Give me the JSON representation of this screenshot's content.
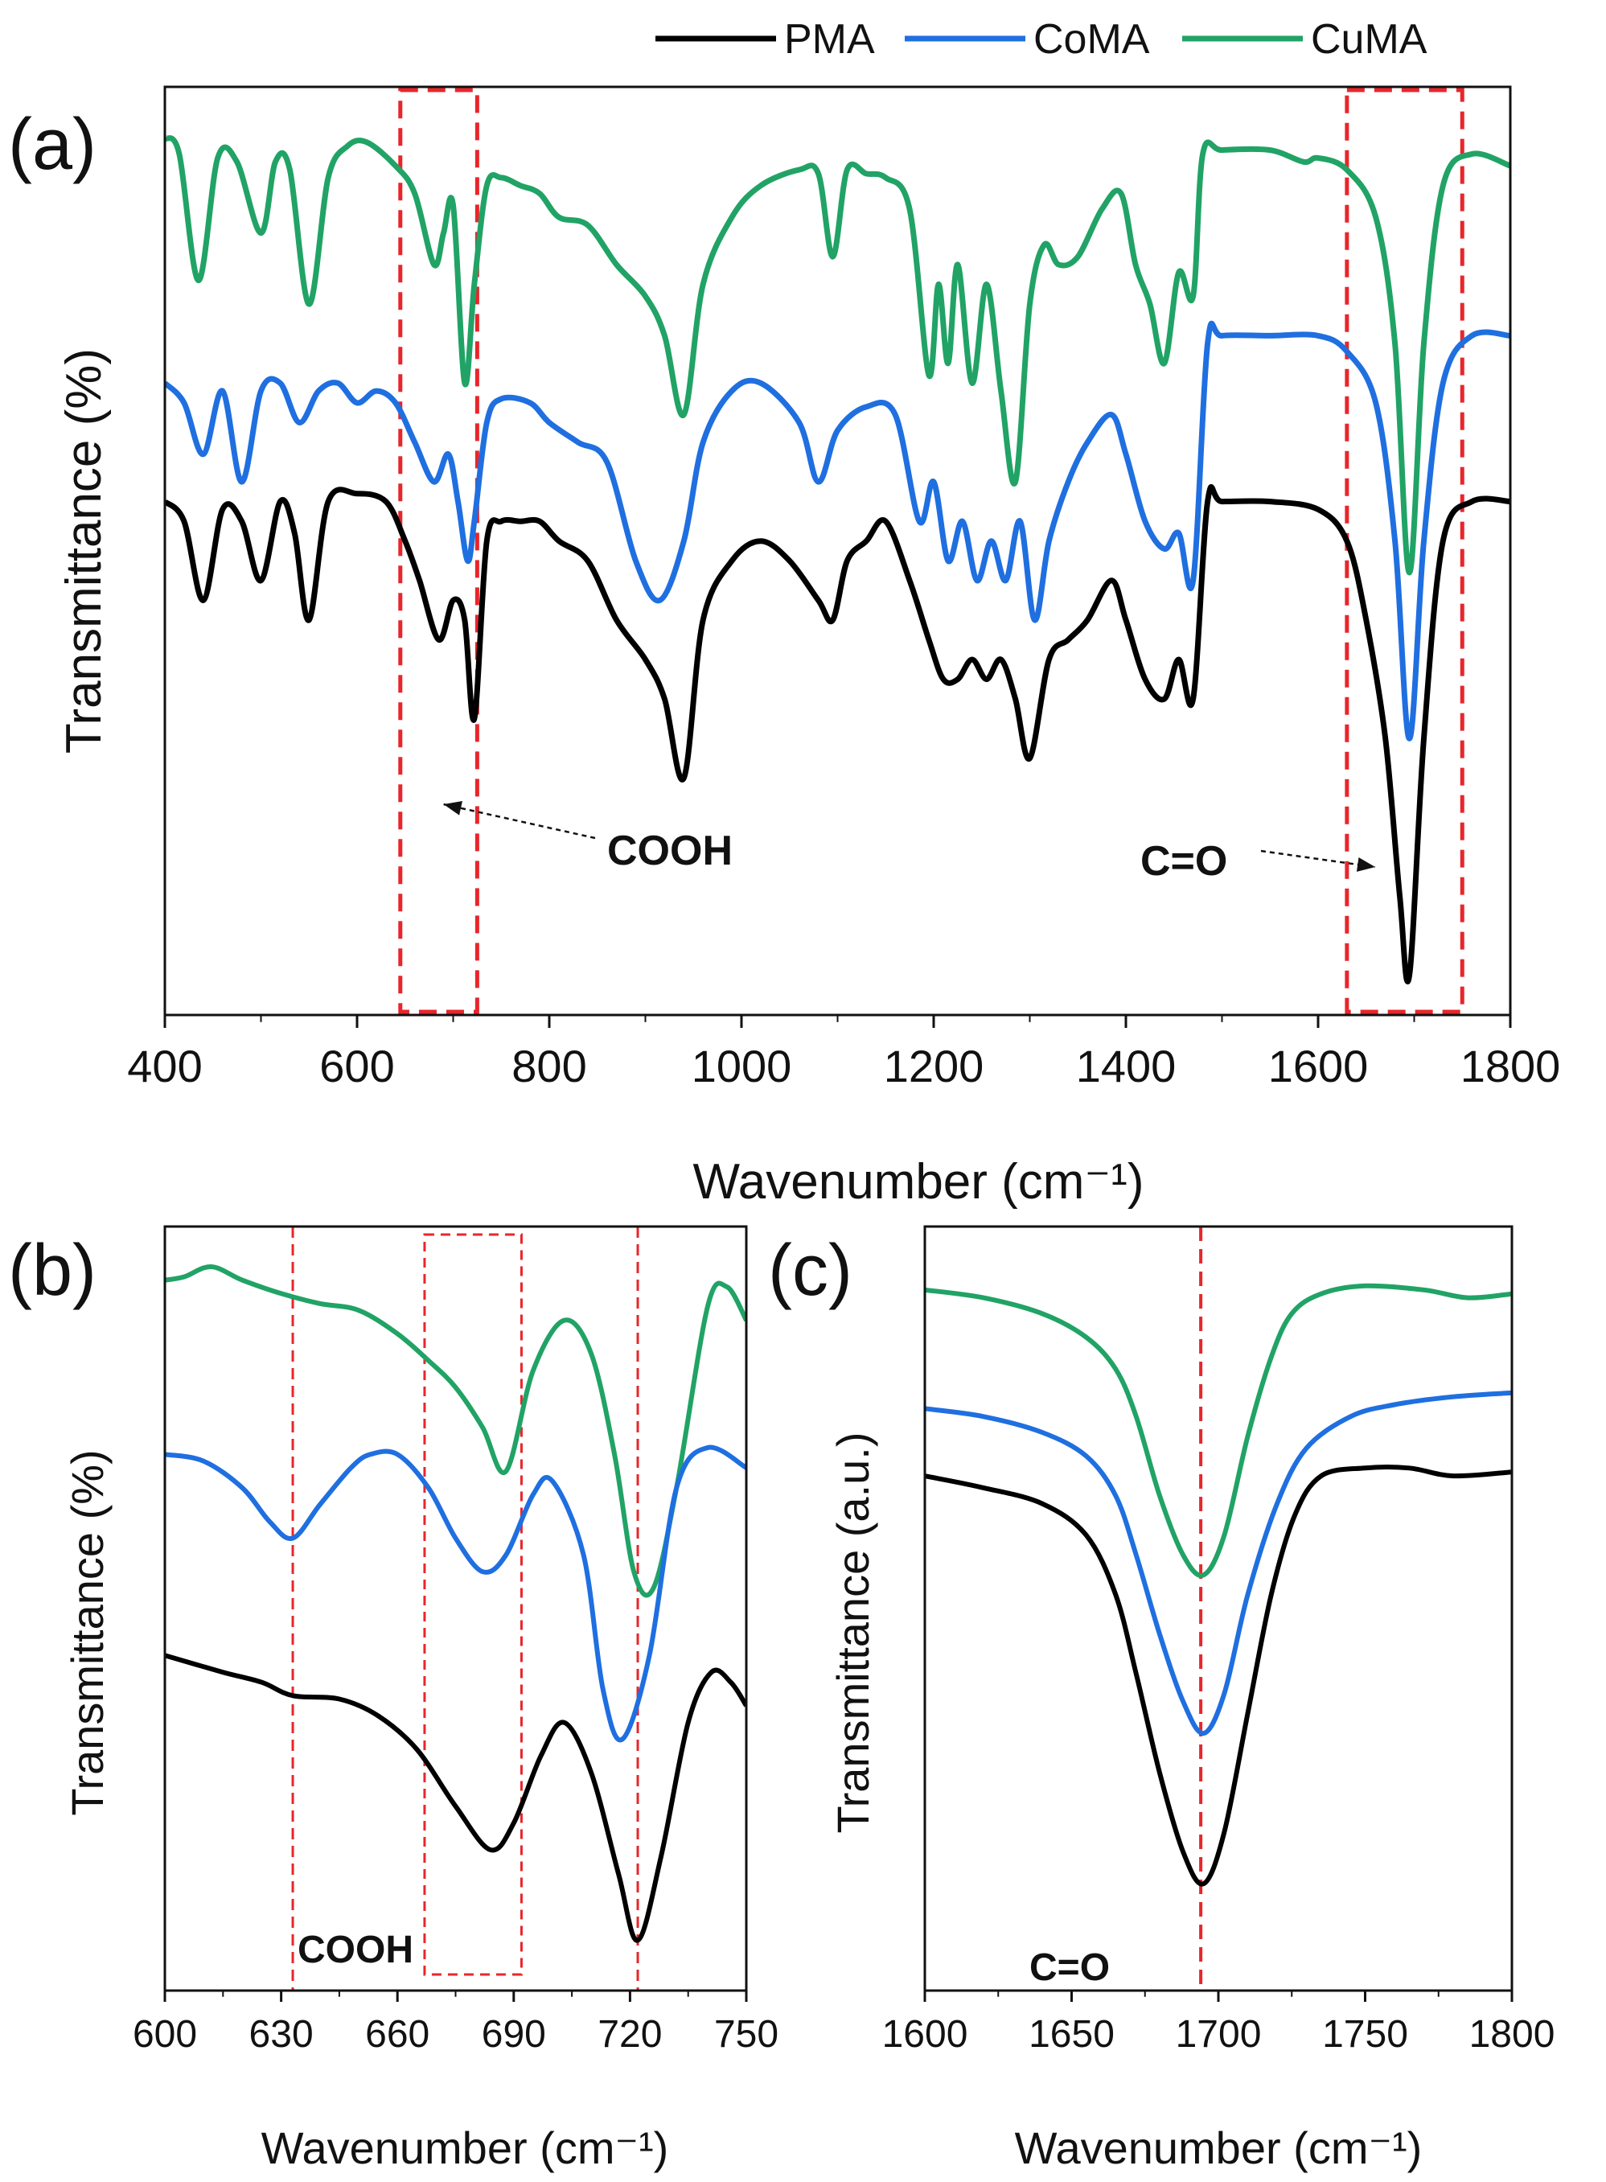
{
  "legend": [
    {
      "name": "PMA",
      "color": "#000000"
    },
    {
      "name": "CoMA",
      "color": "#1f6fe0"
    },
    {
      "name": "CuMA",
      "color": "#21a366"
    }
  ],
  "highlight_color": "#e8262b",
  "chart_data": [
    {
      "type": "line",
      "panel_label": "(a)",
      "xlabel": "Wavenumber (cm⁻¹)",
      "ylabel": "Transmittance (%)",
      "xlim": [
        400,
        1800
      ],
      "xticks": [
        "400",
        "600",
        "800",
        "1000",
        "1200",
        "1400",
        "1600",
        "1800"
      ],
      "y_tick_labels": false,
      "legend_position": "top",
      "annotations": [
        {
          "text": "COOH",
          "x": 740,
          "arrow_to_x": 690
        },
        {
          "text": "C=O",
          "x": 1610,
          "arrow_to_x": 1650
        }
      ],
      "highlight_ranges": [
        [
          645,
          725
        ],
        [
          1630,
          1750
        ]
      ],
      "series": [
        {
          "name": "CuMA",
          "color": "#21a366",
          "x": [
            400,
            415,
            435,
            455,
            475,
            500,
            515,
            530,
            550,
            570,
            590,
            610,
            640,
            660,
            680,
            690,
            700,
            712,
            722,
            735,
            750,
            770,
            790,
            810,
            840,
            870,
            900,
            920,
            940,
            960,
            990,
            1020,
            1060,
            1080,
            1095,
            1110,
            1130,
            1150,
            1175,
            1195,
            1205,
            1215,
            1225,
            1240,
            1255,
            1270,
            1285,
            1300,
            1315,
            1330,
            1350,
            1375,
            1395,
            1410,
            1425,
            1440,
            1455,
            1470,
            1480,
            1500,
            1550,
            1585,
            1600,
            1630,
            1660,
            1680,
            1695,
            1710,
            1730,
            1760,
            1800
          ],
          "values": [
            0.92,
            0.88,
            0.56,
            0.87,
            0.86,
            0.68,
            0.86,
            0.84,
            0.5,
            0.82,
            0.9,
            0.91,
            0.85,
            0.78,
            0.6,
            0.68,
            0.75,
            0.3,
            0.55,
            0.8,
            0.82,
            0.8,
            0.78,
            0.72,
            0.7,
            0.6,
            0.52,
            0.42,
            0.22,
            0.55,
            0.72,
            0.8,
            0.84,
            0.83,
            0.62,
            0.84,
            0.83,
            0.82,
            0.74,
            0.32,
            0.55,
            0.35,
            0.6,
            0.3,
            0.55,
            0.28,
            0.05,
            0.5,
            0.65,
            0.6,
            0.62,
            0.74,
            0.78,
            0.6,
            0.5,
            0.35,
            0.58,
            0.52,
            0.88,
            0.89,
            0.89,
            0.86,
            0.87,
            0.84,
            0.72,
            0.4,
            -0.18,
            0.4,
            0.8,
            0.88,
            0.85
          ]
        },
        {
          "name": "CoMA",
          "color": "#1f6fe0",
          "x": [
            400,
            420,
            440,
            460,
            480,
            500,
            520,
            540,
            560,
            580,
            600,
            620,
            640,
            660,
            680,
            695,
            705,
            715,
            722,
            735,
            750,
            780,
            800,
            830,
            860,
            890,
            915,
            940,
            960,
            990,
            1020,
            1060,
            1080,
            1100,
            1130,
            1160,
            1185,
            1200,
            1215,
            1230,
            1245,
            1260,
            1275,
            1290,
            1305,
            1320,
            1340,
            1360,
            1385,
            1400,
            1420,
            1440,
            1455,
            1470,
            1485,
            1500,
            1550,
            1600,
            1630,
            1660,
            1680,
            1695,
            1710,
            1730,
            1760,
            1800
          ],
          "values": [
            0.3,
            0.25,
            0.12,
            0.28,
            0.05,
            0.28,
            0.3,
            0.2,
            0.28,
            0.3,
            0.25,
            0.28,
            0.25,
            0.15,
            0.05,
            0.12,
            0.0,
            -0.15,
            -0.05,
            0.2,
            0.26,
            0.25,
            0.2,
            0.15,
            0.1,
            -0.15,
            -0.25,
            -0.1,
            0.15,
            0.28,
            0.3,
            0.2,
            0.05,
            0.18,
            0.24,
            0.22,
            -0.05,
            0.05,
            -0.15,
            -0.05,
            -0.2,
            -0.1,
            -0.2,
            -0.05,
            -0.3,
            -0.1,
            0.05,
            0.15,
            0.22,
            0.12,
            -0.05,
            -0.12,
            -0.08,
            -0.2,
            0.4,
            0.42,
            0.42,
            0.42,
            0.38,
            0.25,
            -0.1,
            -0.6,
            -0.1,
            0.3,
            0.42,
            0.42
          ]
        },
        {
          "name": "PMA",
          "color": "#000000",
          "x": [
            400,
            420,
            440,
            460,
            480,
            500,
            520,
            535,
            550,
            570,
            600,
            630,
            650,
            665,
            685,
            700,
            712,
            722,
            735,
            750,
            770,
            790,
            810,
            840,
            870,
            900,
            920,
            940,
            960,
            990,
            1020,
            1050,
            1080,
            1095,
            1110,
            1130,
            1150,
            1175,
            1195,
            1210,
            1225,
            1240,
            1255,
            1270,
            1285,
            1300,
            1320,
            1340,
            1360,
            1385,
            1400,
            1420,
            1440,
            1455,
            1470,
            1485,
            1500,
            1550,
            1600,
            1630,
            1650,
            1670,
            1685,
            1695,
            1710,
            1730,
            1760,
            1800
          ],
          "values": [
            0.0,
            -0.05,
            -0.25,
            -0.02,
            -0.05,
            -0.2,
            0.0,
            -0.08,
            -0.3,
            0.0,
            0.02,
            0.0,
            -0.1,
            -0.2,
            -0.35,
            -0.25,
            -0.3,
            -0.55,
            -0.1,
            -0.05,
            -0.05,
            -0.05,
            -0.1,
            -0.15,
            -0.3,
            -0.4,
            -0.5,
            -0.7,
            -0.3,
            -0.15,
            -0.1,
            -0.15,
            -0.25,
            -0.3,
            -0.15,
            -0.1,
            -0.05,
            -0.2,
            -0.35,
            -0.45,
            -0.45,
            -0.4,
            -0.45,
            -0.4,
            -0.5,
            -0.65,
            -0.4,
            -0.35,
            -0.3,
            -0.2,
            -0.3,
            -0.45,
            -0.5,
            -0.4,
            -0.5,
            0.0,
            0.0,
            0.0,
            -0.02,
            -0.1,
            -0.3,
            -0.6,
            -1.0,
            -1.2,
            -0.6,
            -0.1,
            0.0,
            0.0
          ]
        }
      ]
    },
    {
      "type": "line",
      "panel_label": "(b)",
      "xlabel": "Wavenumber (cm⁻¹)",
      "ylabel": "Transmittance (%)",
      "xlim": [
        600,
        750
      ],
      "xticks": [
        "600",
        "630",
        "660",
        "690",
        "720",
        "750"
      ],
      "y_tick_labels": false,
      "annotations": [
        {
          "text": "COOH",
          "x": 633
        }
      ],
      "reference_lines": [
        633,
        722
      ],
      "highlight_ranges": [
        [
          667,
          692
        ]
      ],
      "series": [
        {
          "name": "CuMA",
          "color": "#21a366",
          "x": [
            600,
            605,
            612,
            620,
            630,
            640,
            650,
            660,
            668,
            675,
            682,
            688,
            695,
            703,
            710,
            716,
            721,
            726,
            732,
            740,
            745,
            750
          ],
          "values": [
            0.92,
            0.93,
            0.96,
            0.92,
            0.88,
            0.85,
            0.83,
            0.76,
            0.68,
            0.6,
            0.48,
            0.35,
            0.65,
            0.8,
            0.7,
            0.4,
            0.05,
            0.0,
            0.3,
            0.84,
            0.9,
            0.8
          ]
        },
        {
          "name": "CoMA",
          "color": "#1f6fe0",
          "x": [
            600,
            610,
            620,
            627,
            633,
            640,
            648,
            653,
            660,
            668,
            675,
            682,
            688,
            695,
            700,
            708,
            713,
            718,
            725,
            732,
            740,
            750
          ],
          "values": [
            0.4,
            0.38,
            0.3,
            0.2,
            0.15,
            0.25,
            0.36,
            0.4,
            0.4,
            0.3,
            0.15,
            0.05,
            0.1,
            0.28,
            0.32,
            0.1,
            -0.3,
            -0.45,
            -0.2,
            0.3,
            0.42,
            0.36
          ]
        },
        {
          "name": "PMA",
          "color": "#000000",
          "x": [
            600,
            615,
            625,
            633,
            645,
            655,
            665,
            675,
            684,
            690,
            697,
            703,
            710,
            717,
            722,
            728,
            735,
            741,
            746,
            750
          ],
          "values": [
            -0.2,
            -0.25,
            -0.28,
            -0.32,
            -0.33,
            -0.38,
            -0.48,
            -0.65,
            -0.78,
            -0.7,
            -0.5,
            -0.4,
            -0.55,
            -0.85,
            -1.05,
            -0.8,
            -0.4,
            -0.25,
            -0.28,
            -0.35
          ]
        }
      ]
    },
    {
      "type": "line",
      "panel_label": "(c)",
      "xlabel": "Wavenumber (cm⁻¹)",
      "ylabel": "Transmittance (a.u.)",
      "xlim": [
        1600,
        1800
      ],
      "xticks": [
        "1600",
        "1650",
        "1700",
        "1750",
        "1800"
      ],
      "y_tick_labels": false,
      "annotations": [
        {
          "text": "C=O",
          "x": 1650
        }
      ],
      "reference_lines": [
        1694
      ],
      "series": [
        {
          "name": "CuMA",
          "color": "#21a366",
          "x": [
            1600,
            1620,
            1640,
            1655,
            1665,
            1672,
            1680,
            1688,
            1695,
            1702,
            1710,
            1718,
            1725,
            1735,
            1750,
            1770,
            1785,
            1800
          ],
          "values": [
            0.92,
            0.9,
            0.86,
            0.8,
            0.72,
            0.6,
            0.4,
            0.25,
            0.2,
            0.3,
            0.55,
            0.75,
            0.86,
            0.91,
            0.93,
            0.92,
            0.9,
            0.91
          ]
        },
        {
          "name": "CoMA",
          "color": "#1f6fe0",
          "x": [
            1600,
            1620,
            1640,
            1655,
            1665,
            1672,
            1680,
            1688,
            1695,
            1702,
            1710,
            1720,
            1730,
            1745,
            1760,
            1780,
            1800
          ],
          "values": [
            0.62,
            0.6,
            0.56,
            0.5,
            0.4,
            0.25,
            0.05,
            -0.12,
            -0.2,
            -0.1,
            0.15,
            0.38,
            0.52,
            0.6,
            0.63,
            0.65,
            0.66
          ]
        },
        {
          "name": "PMA",
          "color": "#000000",
          "x": [
            1600,
            1620,
            1640,
            1655,
            1665,
            1672,
            1680,
            1688,
            1695,
            1702,
            1710,
            1718,
            1726,
            1735,
            1750,
            1765,
            1780,
            1800
          ],
          "values": [
            0.45,
            0.42,
            0.38,
            0.3,
            0.15,
            -0.05,
            -0.3,
            -0.5,
            -0.58,
            -0.45,
            -0.15,
            0.15,
            0.35,
            0.45,
            0.47,
            0.47,
            0.45,
            0.46
          ]
        }
      ]
    }
  ]
}
